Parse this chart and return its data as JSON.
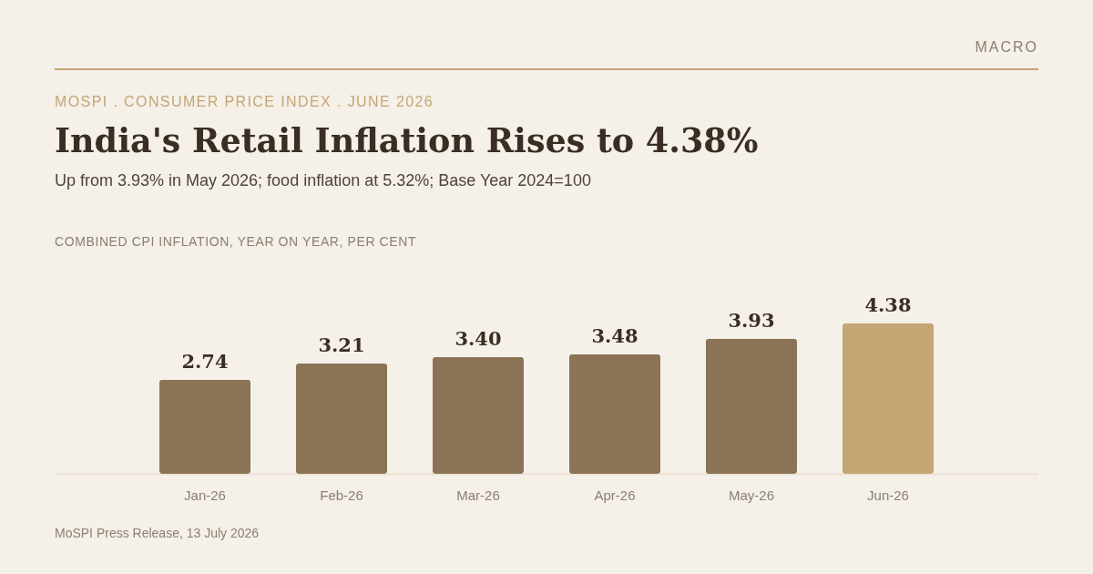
{
  "chart_data": {
    "type": "bar",
    "title": "India's Retail Inflation Rises to 4.38%",
    "subtitle": "Up from 3.93% in May 2026; food inflation at 5.32%; Base Year 2024=100",
    "annotations": [
      "MACRO",
      "MOSPI . CONSUMER PRICE INDEX . JUNE 2026",
      "COMBINED CPI INFLATION, YEAR ON YEAR, PER CENT",
      "MoSPI Press Release, 13 July 2026"
    ],
    "categories": [
      "Jan-26",
      "Feb-26",
      "Mar-26",
      "Apr-26",
      "May-26",
      "Jun-26"
    ],
    "values": [
      2.74,
      3.21,
      3.4,
      3.48,
      3.93,
      4.38
    ],
    "value_labels": [
      "2.74",
      "3.21",
      "3.40",
      "3.48",
      "3.93",
      "4.38"
    ],
    "colors": [
      "#8b7355",
      "#8b7355",
      "#8b7355",
      "#8b7355",
      "#8b7355",
      "#c4a574"
    ],
    "tick_labels": "x"
  }
}
